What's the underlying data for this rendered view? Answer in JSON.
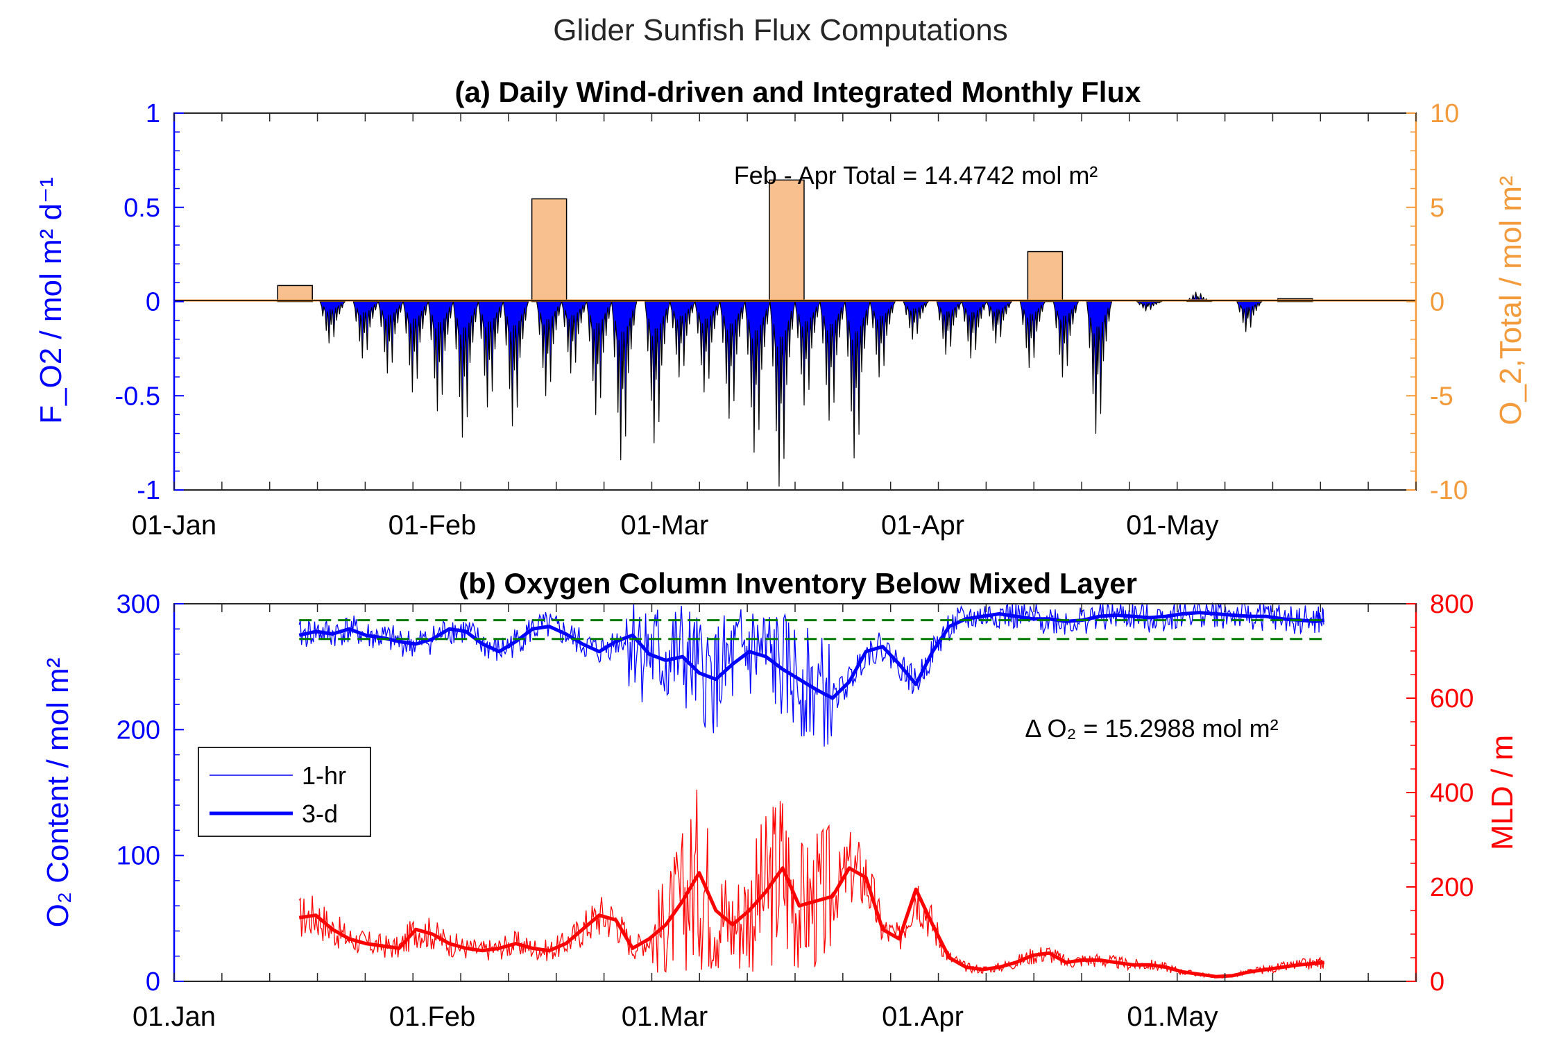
{
  "figure": {
    "suptitle": "Glider Sunfish Flux Computations"
  },
  "panel_a": {
    "title": "(a) Daily Wind-driven and Integrated Monthly Flux",
    "annotation": "Feb - Apr Total = 14.4742 mol m²",
    "ylabel_left": "F_O2 / mol m² d⁻¹",
    "ylabel_right": "O_2,Total / mol m²",
    "xticklabels": [
      "01-Jan",
      "01-Feb",
      "01-Mar",
      "01-Apr",
      "01-May"
    ]
  },
  "panel_b": {
    "title": "(b) Oxygen Column Inventory Below Mixed Layer",
    "annotation": "Δ O₂ = 15.2988 mol m²",
    "ylabel_left": "O₂ Content / mol m²",
    "ylabel_right": "MLD / m",
    "xticklabels": [
      "01.Jan",
      "01.Feb",
      "01.Mar",
      "01.Apr",
      "01.May"
    ],
    "legend": {
      "item1": "1-hr",
      "item2": "3-d"
    }
  },
  "colors": {
    "flux_fill": "#0000ff",
    "monthly_bar": "#f9c08f",
    "right_axis_a": "#f39a3b",
    "oxygen": "#0000ff",
    "mld": "#ff0000",
    "reference_lines": "#007a00"
  },
  "chart_data": [
    {
      "type": "bar",
      "panel": "a",
      "title": "(a) Daily Wind-driven and Integrated Monthly Flux",
      "x_unit": "day of year (1 = 01-Jan)",
      "xlim": [
        1,
        150
      ],
      "grid": false,
      "left_axis": {
        "label": "F_O2 / mol m2 d-1",
        "ylim": [
          -1,
          1
        ],
        "ticks": [
          -1,
          -0.5,
          0,
          0.5,
          1
        ],
        "ticklabels": [
          "-1",
          "-0.5",
          "0",
          "0.5",
          "1"
        ]
      },
      "right_axis": {
        "label": "O2,Total / mol m2",
        "ylim": [
          -10,
          10
        ],
        "ticks": [
          -10,
          -5,
          0,
          5,
          10
        ],
        "ticklabels": [
          "-10",
          "-5",
          "0",
          "5",
          "10"
        ]
      },
      "monthly_total_bars": {
        "x": [
          "mid-Jan",
          "mid-Feb",
          "mid-Mar",
          "mid-Apr",
          "mid-May"
        ],
        "x_day": [
          15.5,
          46,
          74.5,
          105.5,
          135.5
        ],
        "values": [
          0.85,
          5.45,
          6.45,
          2.65,
          0.15
        ]
      },
      "daily_flux_minima": {
        "x_day": [
          20,
          24,
          27,
          30,
          33,
          36,
          39,
          42,
          46,
          49,
          52,
          55,
          59,
          62,
          65,
          68,
          71,
          74,
          77,
          80,
          83,
          86,
          90,
          94,
          97,
          100,
          104,
          108,
          112,
          118,
          124,
          130
        ],
        "values": [
          -0.22,
          -0.3,
          -0.38,
          -0.48,
          -0.58,
          -0.72,
          -0.56,
          -0.66,
          -0.5,
          -0.38,
          -0.6,
          -0.84,
          -0.75,
          -0.4,
          -0.48,
          -0.62,
          -0.8,
          -0.98,
          -0.55,
          -0.63,
          -0.83,
          -0.4,
          -0.2,
          -0.28,
          -0.3,
          -0.22,
          -0.35,
          -0.4,
          -0.7,
          -0.05,
          0.05,
          -0.16
        ]
      }
    },
    {
      "type": "line",
      "panel": "b",
      "title": "(b) Oxygen Column Inventory Below Mixed Layer",
      "x_unit": "day of year (1 = 01.Jan)",
      "xlim": [
        1,
        150
      ],
      "grid": false,
      "legend_position": "middle-left",
      "left_axis": {
        "label": "O2 Content / mol m2",
        "ylim": [
          0,
          300
        ],
        "ticks": [
          0,
          100,
          200,
          300
        ],
        "ticklabels": [
          "0",
          "100",
          "200",
          "300"
        ]
      },
      "right_axis": {
        "label": "MLD / m",
        "ylim": [
          0,
          800
        ],
        "ticks": [
          0,
          200,
          400,
          600,
          800
        ],
        "ticklabels": [
          "0",
          "200",
          "400",
          "600",
          "800"
        ]
      },
      "reference_lines": {
        "values": [
          287,
          272
        ],
        "x_range": [
          16,
          139
        ],
        "style": "dashed"
      },
      "series": [
        {
          "name": "3-d",
          "axis": "left",
          "color": "#0000ff",
          "x": [
            16,
            18,
            20,
            22,
            24,
            26,
            28,
            30,
            32,
            34,
            36,
            38,
            40,
            42,
            44,
            46,
            48,
            50,
            52,
            54,
            56,
            58,
            60,
            62,
            64,
            66,
            68,
            70,
            72,
            74,
            76,
            78,
            80,
            82,
            84,
            86,
            88,
            90,
            92,
            94,
            96,
            98,
            100,
            102,
            104,
            106,
            108,
            110,
            112,
            114,
            116,
            118,
            120,
            122,
            124,
            126,
            128,
            130,
            132,
            134,
            136,
            138,
            139
          ],
          "values": [
            275,
            278,
            276,
            280,
            275,
            273,
            270,
            268,
            272,
            280,
            278,
            268,
            262,
            270,
            280,
            282,
            276,
            268,
            262,
            270,
            275,
            260,
            255,
            258,
            245,
            240,
            252,
            262,
            258,
            248,
            240,
            232,
            225,
            238,
            262,
            266,
            252,
            236,
            262,
            282,
            288,
            290,
            292,
            290,
            288,
            288,
            286,
            287,
            290,
            291,
            290,
            289,
            290,
            292,
            293,
            292,
            291,
            290,
            290,
            288,
            287,
            286,
            287
          ]
        },
        {
          "name": "3-d",
          "axis": "right",
          "color": "#ff0000",
          "x": [
            16,
            18,
            20,
            22,
            24,
            26,
            28,
            30,
            32,
            34,
            36,
            38,
            40,
            42,
            44,
            46,
            48,
            50,
            52,
            54,
            56,
            58,
            60,
            62,
            64,
            66,
            68,
            70,
            72,
            74,
            76,
            78,
            80,
            82,
            84,
            86,
            88,
            90,
            92,
            94,
            96,
            98,
            100,
            102,
            104,
            106,
            108,
            110,
            112,
            114,
            116,
            118,
            120,
            122,
            124,
            126,
            128,
            130,
            132,
            134,
            136,
            138,
            139
          ],
          "values": [
            135,
            140,
            110,
            90,
            80,
            75,
            70,
            110,
            100,
            80,
            70,
            65,
            70,
            80,
            70,
            65,
            80,
            110,
            140,
            130,
            70,
            90,
            120,
            170,
            230,
            150,
            120,
            150,
            190,
            240,
            160,
            170,
            180,
            240,
            220,
            110,
            90,
            195,
            120,
            50,
            30,
            25,
            30,
            40,
            55,
            60,
            40,
            45,
            45,
            40,
            35,
            35,
            30,
            20,
            15,
            10,
            12,
            20,
            25,
            30,
            35,
            38,
            40
          ]
        }
      ]
    }
  ]
}
